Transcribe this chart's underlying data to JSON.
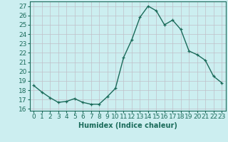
{
  "x": [
    0,
    1,
    2,
    3,
    4,
    5,
    6,
    7,
    8,
    9,
    10,
    11,
    12,
    13,
    14,
    15,
    16,
    17,
    18,
    19,
    20,
    21,
    22,
    23
  ],
  "y": [
    18.5,
    17.8,
    17.2,
    16.7,
    16.8,
    17.1,
    16.7,
    16.5,
    16.5,
    17.3,
    18.2,
    21.5,
    23.4,
    25.8,
    27.0,
    26.5,
    25.0,
    25.5,
    24.5,
    22.2,
    21.8,
    21.2,
    19.5,
    18.8
  ],
  "line_color": "#1a6b5a",
  "marker": "+",
  "marker_size": 3,
  "linewidth": 1.0,
  "xlabel": "Humidex (Indice chaleur)",
  "ylabel_ticks": [
    16,
    17,
    18,
    19,
    20,
    21,
    22,
    23,
    24,
    25,
    26,
    27
  ],
  "xlim": [
    -0.5,
    23.5
  ],
  "ylim": [
    15.8,
    27.5
  ],
  "xtick_labels": [
    "0",
    "1",
    "2",
    "3",
    "4",
    "5",
    "6",
    "7",
    "8",
    "9",
    "10",
    "11",
    "12",
    "13",
    "14",
    "15",
    "16",
    "17",
    "18",
    "19",
    "20",
    "21",
    "22",
    "23"
  ],
  "background_color": "#cceef0",
  "grid_color": "#c0c0c8",
  "xlabel_fontsize": 7,
  "tick_fontsize": 6.5,
  "tick_color": "#1a6b5a",
  "spine_color": "#1a6b5a"
}
